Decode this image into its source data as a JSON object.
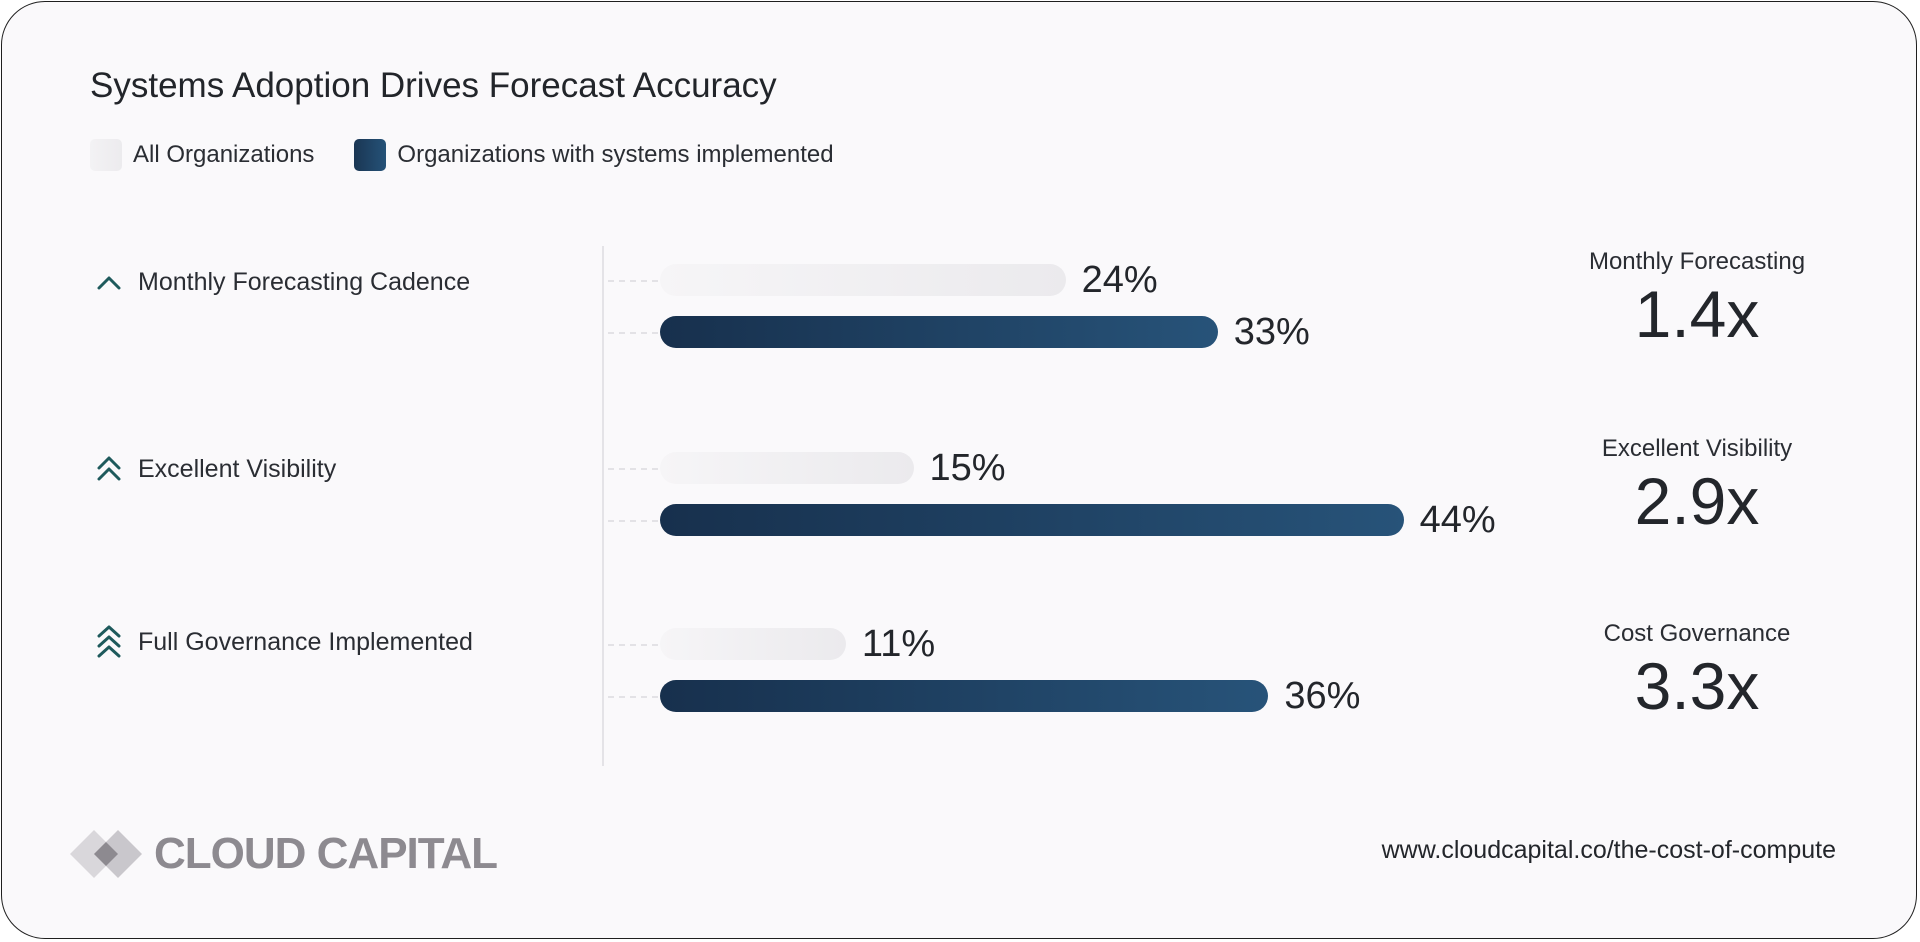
{
  "chart_data": {
    "type": "bar",
    "orientation": "horizontal",
    "title": "Systems Adoption Drives Forecast Accuracy",
    "categories": [
      "Monthly Forecasting Cadence",
      "Excellent Visibility",
      "Full Governance Implemented"
    ],
    "category_icons": [
      "chevron-up-icon",
      "double-chevron-up-icon",
      "triple-chevron-up-icon"
    ],
    "series": [
      {
        "name": "All Organizations",
        "values": [
          24,
          15,
          11
        ],
        "value_labels": [
          "24%",
          "15%",
          "11%"
        ],
        "color": "#efeef1"
      },
      {
        "name": "Organizations with systems implemented",
        "values": [
          33,
          44,
          36
        ],
        "value_labels": [
          "33%",
          "44%",
          "36%"
        ],
        "color": "#1f4466"
      }
    ],
    "unit": "%",
    "xlim": [
      0,
      50
    ],
    "legend_position": "top-left",
    "grid": false,
    "multipliers": [
      {
        "label": "Monthly Forecasting",
        "value": "1.4x"
      },
      {
        "label": "Excellent Visibility",
        "value": "2.9x"
      },
      {
        "label": "Cost Governance",
        "value": "3.3x"
      }
    ]
  },
  "footer": {
    "brand": "CLOUD CAPITAL",
    "url": "www.cloudcapital.co/the-cost-of-compute"
  },
  "colors": {
    "accent": "#1f4466",
    "icon": "#1e5a5c",
    "light_bar": "#efeef1"
  }
}
